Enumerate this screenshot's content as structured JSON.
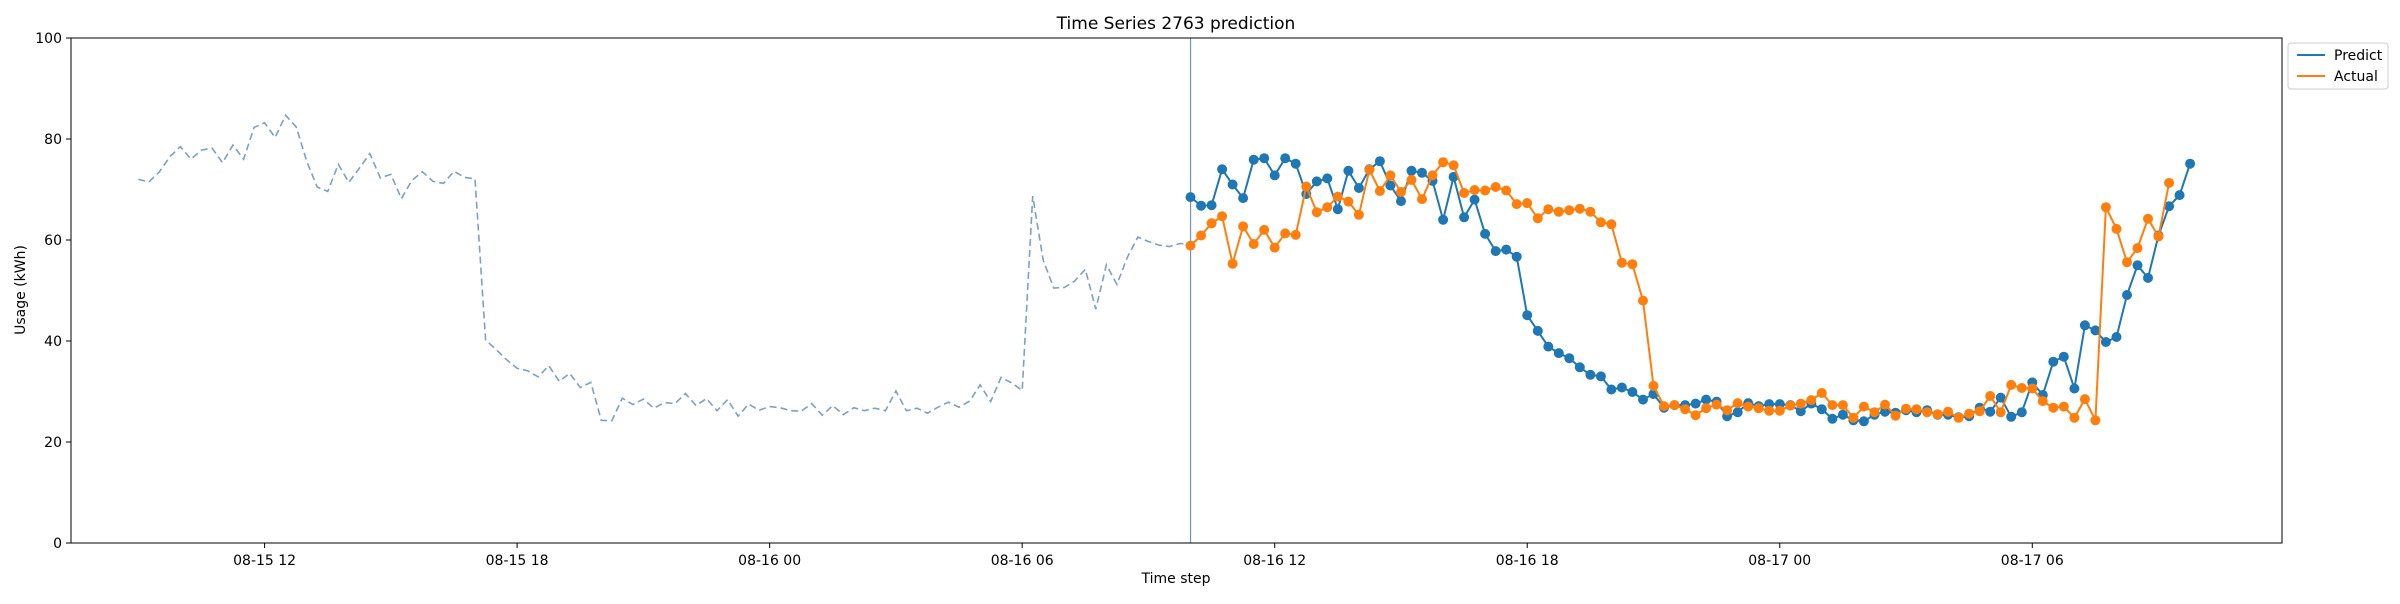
{
  "chart_data": {
    "type": "line",
    "title": "Time Series 2763 prediction",
    "xlabel": "Time step",
    "ylabel": "Usage (kWh)",
    "ylim": [
      0,
      100
    ],
    "xlim": [
      "08-15 07:24",
      "08-17 11:56"
    ],
    "x_ticks": [
      {
        "label": "08-15 12",
        "time": "08-15 12:00"
      },
      {
        "label": "08-15 18",
        "time": "08-15 18:00"
      },
      {
        "label": "08-16 00",
        "time": "08-16 00:00"
      },
      {
        "label": "08-16 06",
        "time": "08-16 06:00"
      },
      {
        "label": "08-16 12",
        "time": "08-16 12:00"
      },
      {
        "label": "08-16 18",
        "time": "08-16 18:00"
      },
      {
        "label": "08-17 00",
        "time": "08-17 00:00"
      },
      {
        "label": "08-17 06",
        "time": "08-17 06:00"
      }
    ],
    "y_ticks": [
      0,
      20,
      40,
      60,
      80,
      100
    ],
    "grid": false,
    "legend_position": "outside-top-right",
    "forecast_start": "08-16 10:00",
    "forecast_interval_minutes": 15,
    "history": {
      "color": "#7f9fc4",
      "style": "dashed",
      "x": [
        "08-15 09:00",
        "08-15 09:15",
        "08-15 09:30",
        "08-15 09:45",
        "08-15 10:00",
        "08-15 10:15",
        "08-15 10:30",
        "08-15 10:45",
        "08-15 11:00",
        "08-15 11:15",
        "08-15 11:30",
        "08-15 11:45",
        "08-15 12:00",
        "08-15 12:15",
        "08-15 12:30",
        "08-15 12:45",
        "08-15 13:00",
        "08-15 13:15",
        "08-15 13:30",
        "08-15 13:45",
        "08-15 14:00",
        "08-15 14:15",
        "08-15 14:30",
        "08-15 14:45",
        "08-15 15:00",
        "08-15 15:15",
        "08-15 15:30",
        "08-15 15:45",
        "08-15 16:00",
        "08-15 16:15",
        "08-15 16:30",
        "08-15 16:45",
        "08-15 17:00",
        "08-15 17:15",
        "08-15 17:30",
        "08-15 17:45",
        "08-15 18:00",
        "08-15 18:15",
        "08-15 18:30",
        "08-15 18:45",
        "08-15 19:00",
        "08-15 19:15",
        "08-15 19:30",
        "08-15 19:45",
        "08-15 20:00",
        "08-15 20:15",
        "08-15 20:30",
        "08-15 20:45",
        "08-15 21:00",
        "08-15 21:15",
        "08-15 21:30",
        "08-15 21:45",
        "08-15 22:00",
        "08-15 22:15",
        "08-15 22:30",
        "08-15 22:45",
        "08-15 23:00",
        "08-15 23:15",
        "08-15 23:30",
        "08-15 23:45",
        "08-16 00:00",
        "08-16 00:15",
        "08-16 00:30",
        "08-16 00:45",
        "08-16 01:00",
        "08-16 01:15",
        "08-16 01:30",
        "08-16 01:45",
        "08-16 02:00",
        "08-16 02:15",
        "08-16 02:30",
        "08-16 02:45",
        "08-16 03:00",
        "08-16 03:15",
        "08-16 03:30",
        "08-16 03:45",
        "08-16 04:00",
        "08-16 04:15",
        "08-16 04:30",
        "08-16 04:45",
        "08-16 05:00",
        "08-16 05:15",
        "08-16 05:30",
        "08-16 05:45",
        "08-16 06:00",
        "08-16 06:15",
        "08-16 06:30",
        "08-16 06:45",
        "08-16 07:00",
        "08-16 07:15",
        "08-16 07:30",
        "08-16 07:45",
        "08-16 08:00",
        "08-16 08:15",
        "08-16 08:30",
        "08-16 08:45",
        "08-16 09:00",
        "08-16 09:15",
        "08-16 09:30",
        "08-16 09:45",
        "08-16 10:00"
      ],
      "values": [
        72.0,
        71.5,
        73.5,
        76.5,
        78.5,
        76.0,
        77.8,
        78.2,
        75.3,
        78.8,
        76.0,
        82.3,
        83.2,
        80.3,
        84.7,
        82.4,
        75.6,
        70.5,
        69.6,
        75.0,
        71.4,
        74.2,
        77.1,
        72.3,
        73.0,
        68.2,
        71.8,
        73.5,
        71.6,
        71.2,
        73.6,
        72.4,
        72.1,
        40.2,
        38.3,
        36.3,
        34.6,
        34.1,
        32.9,
        35.1,
        32.0,
        33.6,
        30.8,
        31.8,
        24.3,
        24.2,
        28.7,
        27.4,
        28.5,
        26.7,
        27.8,
        27.6,
        29.6,
        27.2,
        28.6,
        26.2,
        28.4,
        25.1,
        27.5,
        26.3,
        27.0,
        26.8,
        26.2,
        26.1,
        27.6,
        25.3,
        27.2,
        25.4,
        26.8,
        26.2,
        26.7,
        26.2,
        30.1,
        26.2,
        26.7,
        25.7,
        26.9,
        27.9,
        26.9,
        28.1,
        31.3,
        28.0,
        32.8,
        31.7,
        30.2,
        68.7,
        56.0,
        50.5,
        50.6,
        51.9,
        54.2,
        46.3,
        55.1,
        51.2,
        56.6,
        60.6,
        59.7,
        59.0,
        58.7,
        59.3,
        59.2
      ]
    },
    "series": [
      {
        "name": "Predict",
        "color": "#1f77b4",
        "values": [
          68.5,
          66.8,
          66.9,
          74.0,
          71.0,
          68.3,
          75.9,
          76.2,
          72.8,
          76.2,
          75.1,
          69.1,
          71.6,
          72.2,
          66.1,
          73.7,
          70.3,
          74.0,
          75.6,
          70.8,
          67.7,
          73.7,
          73.3,
          71.7,
          64.0,
          72.5,
          64.5,
          68.0,
          61.2,
          57.8,
          58.1,
          56.7,
          45.1,
          42.0,
          38.9,
          37.6,
          36.6,
          34.8,
          33.3,
          33.0,
          30.4,
          30.8,
          29.9,
          28.4,
          29.5,
          26.8,
          27.3,
          27.3,
          27.6,
          28.4,
          28.0,
          25.1,
          25.9,
          27.7,
          27.1,
          27.5,
          27.5,
          27.3,
          26.1,
          27.6,
          26.5,
          24.6,
          25.4,
          24.3,
          24.1,
          25.4,
          26.0,
          25.8,
          26.3,
          25.9,
          26.3,
          25.4,
          25.4,
          24.9,
          25.1,
          26.8,
          26.0,
          28.8,
          25.0,
          25.9,
          31.8,
          29.3,
          35.9,
          36.9,
          30.6,
          43.1,
          42.1,
          39.8,
          40.8,
          49.1,
          55.0,
          52.5,
          60.9,
          66.7,
          68.9,
          75.1
        ]
      },
      {
        "name": "Actual",
        "color": "#ff7f0e",
        "values": [
          58.9,
          60.9,
          63.3,
          64.7,
          55.3,
          62.7,
          59.2,
          62.0,
          58.5,
          61.3,
          61.0,
          70.6,
          65.5,
          66.5,
          68.6,
          67.6,
          65.0,
          73.9,
          69.7,
          72.8,
          69.5,
          71.9,
          68.1,
          72.8,
          75.4,
          74.8,
          69.3,
          69.9,
          69.8,
          70.5,
          69.8,
          67.1,
          67.3,
          64.3,
          66.1,
          65.6,
          65.9,
          66.2,
          65.6,
          63.5,
          63.1,
          55.5,
          55.2,
          48.0,
          31.1,
          27.1,
          27.3,
          26.5,
          25.3,
          26.7,
          27.4,
          26.3,
          27.7,
          27.0,
          26.7,
          26.2,
          26.2,
          27.2,
          27.6,
          28.3,
          29.7,
          27.3,
          27.3,
          24.8,
          27.0,
          25.9,
          27.4,
          25.2,
          26.6,
          26.5,
          25.9,
          25.5,
          26.0,
          24.8,
          25.6,
          26.1,
          29.1,
          25.9,
          31.3,
          30.7,
          30.6,
          28.1,
          26.8,
          27.0,
          24.8,
          28.5,
          24.3,
          66.5,
          62.2,
          55.6,
          58.4,
          64.2,
          60.7,
          71.3
        ]
      }
    ]
  }
}
